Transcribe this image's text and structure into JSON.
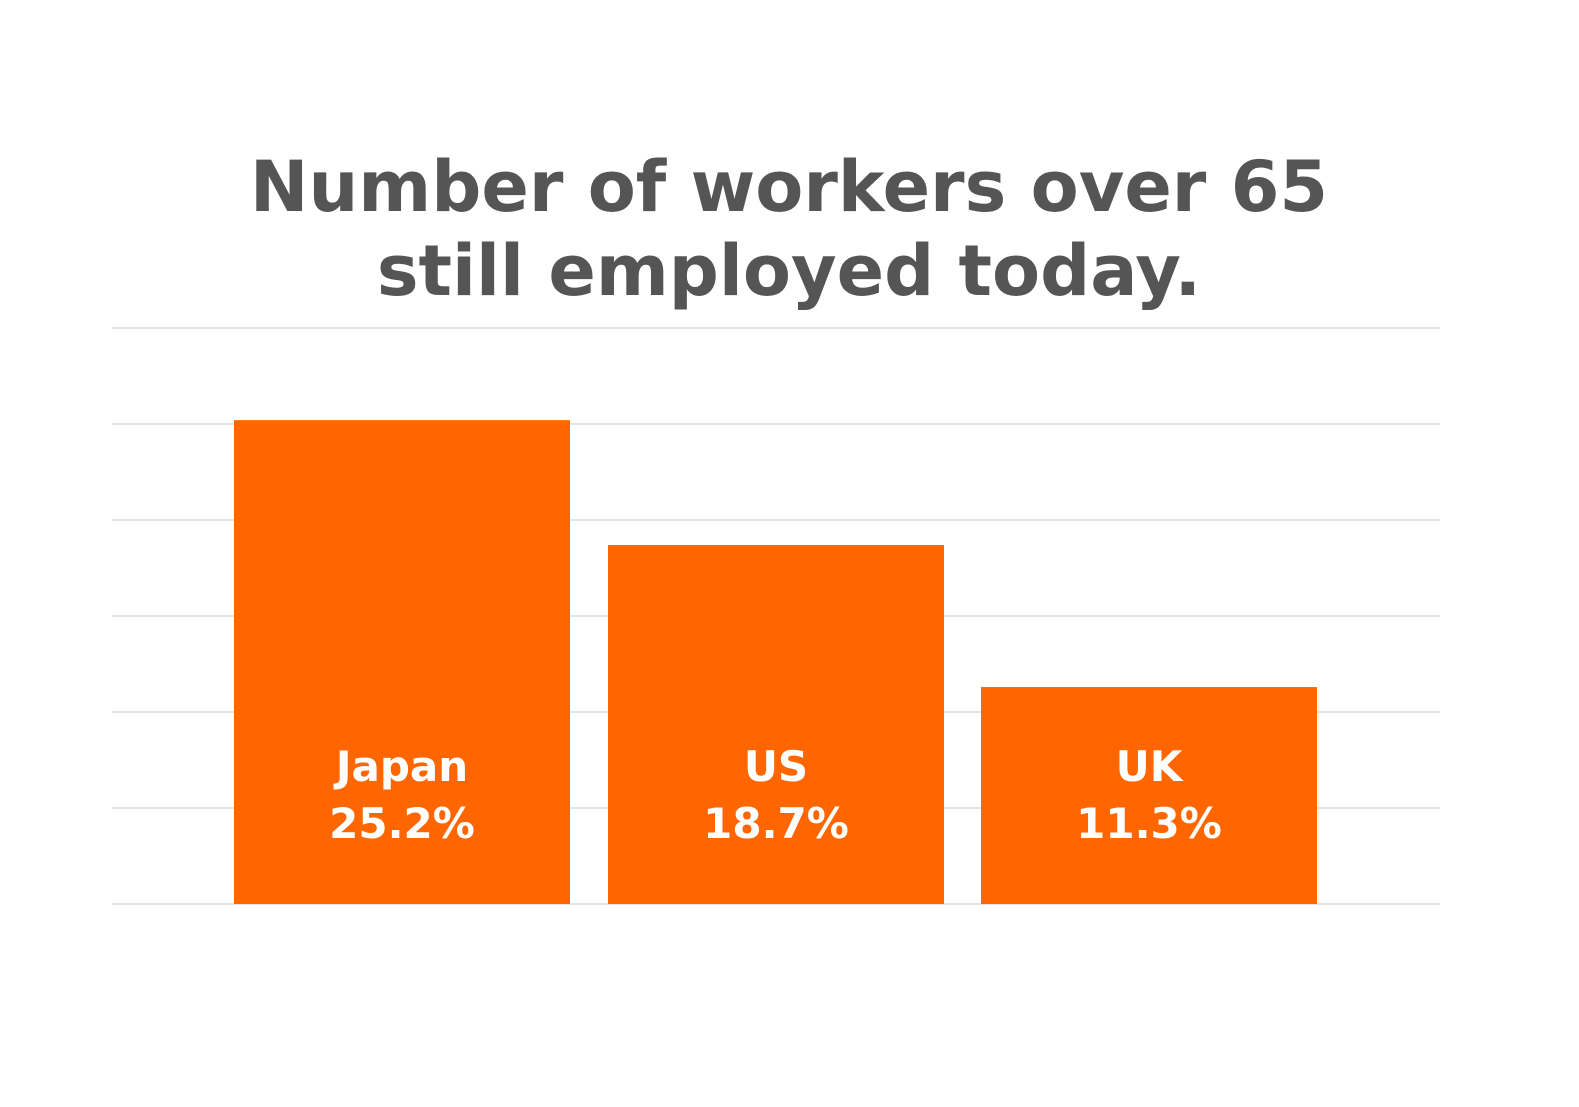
{
  "chart_data": {
    "type": "bar",
    "title_lines": [
      "Number of workers over 65",
      "still employed today."
    ],
    "categories": [
      "Japan",
      "US",
      "UK"
    ],
    "values": [
      25.2,
      18.7,
      11.3
    ],
    "value_labels": [
      "25.2%",
      "18.7%",
      "11.3%"
    ],
    "ylim": [
      0,
      30
    ],
    "gridlines": [
      0,
      5,
      10,
      15,
      20,
      25,
      30
    ],
    "grid": true,
    "bar_color": "#ff6600",
    "grid_color": "#dcdcdc",
    "title_color": "#555555",
    "label_color": "#ffffff"
  }
}
